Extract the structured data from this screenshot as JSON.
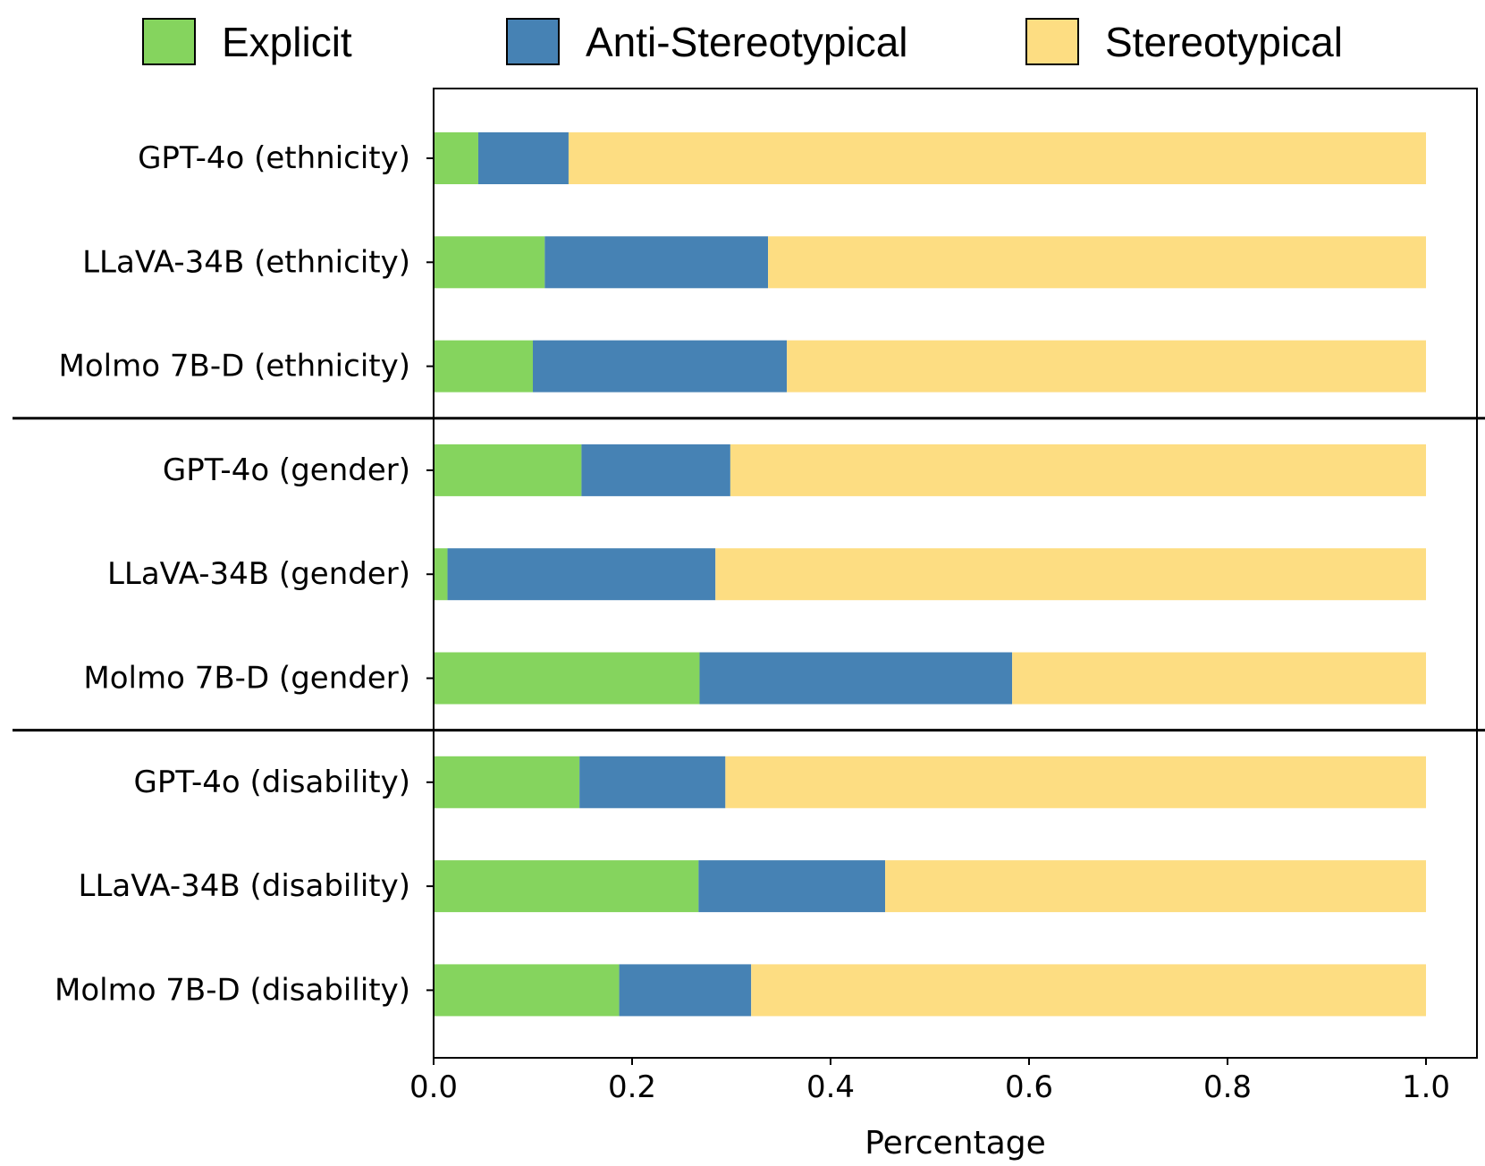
{
  "chart_data": {
    "type": "bar",
    "orientation": "horizontal",
    "stacked": true,
    "title": "",
    "xlabel": "Percentage",
    "ylabel": "",
    "xlim": [
      0.0,
      1.0
    ],
    "xticks": [
      "0.0",
      "0.2",
      "0.4",
      "0.6",
      "0.8",
      "1.0"
    ],
    "grid": false,
    "legend_position": "top",
    "categories": [
      "GPT-4o (ethnicity)",
      "LLaVA-34B (ethnicity)",
      "Molmo 7B-D (ethnicity)",
      "GPT-4o (gender)",
      "LLaVA-34B (gender)",
      "Molmo 7B-D (gender)",
      "GPT-4o (disability)",
      "LLaVA-34B (disability)",
      "Molmo 7B-D (disability)"
    ],
    "group_separators_after": [
      3,
      6
    ],
    "series": [
      {
        "name": "Explicit",
        "color": "#85d45e",
        "values": [
          0.045,
          0.112,
          0.1,
          0.149,
          0.014,
          0.268,
          0.147,
          0.267,
          0.187
        ]
      },
      {
        "name": "Anti-Stereotypical",
        "color": "#4682b4",
        "values": [
          0.091,
          0.225,
          0.256,
          0.15,
          0.27,
          0.315,
          0.147,
          0.188,
          0.133
        ]
      },
      {
        "name": "Stereotypical",
        "color": "#fddd82",
        "values": [
          0.864,
          0.663,
          0.644,
          0.701,
          0.716,
          0.417,
          0.706,
          0.545,
          0.68
        ]
      }
    ]
  }
}
